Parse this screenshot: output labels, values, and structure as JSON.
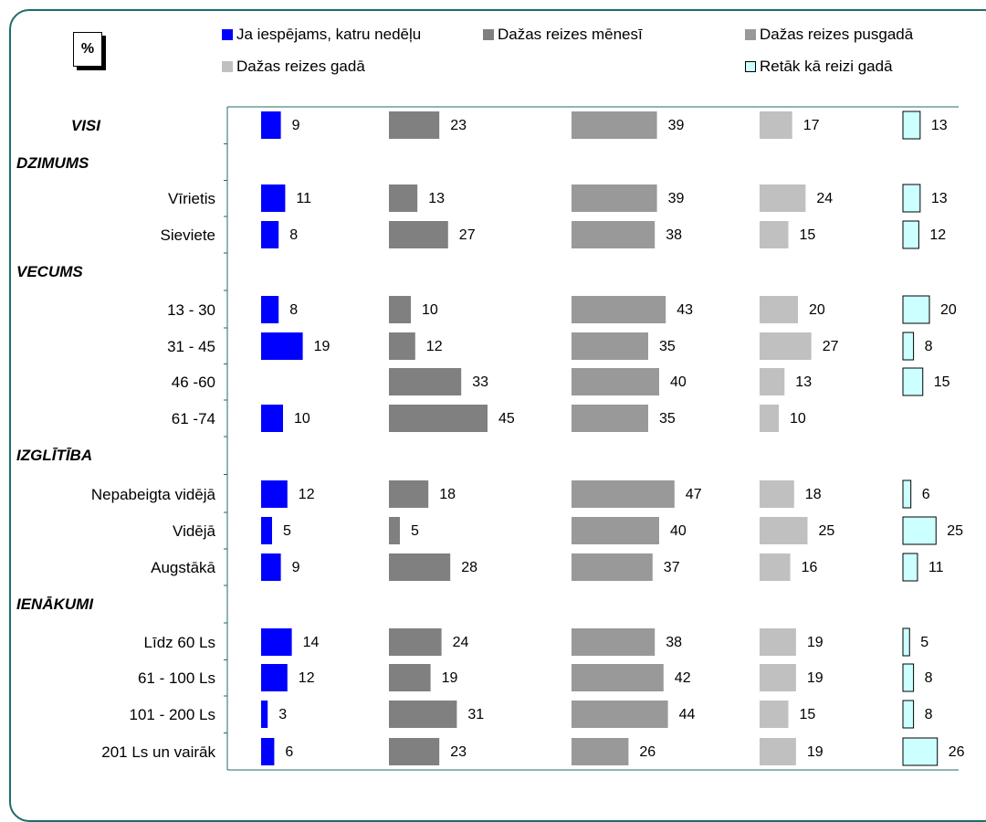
{
  "unit_badge": "%",
  "colors": {
    "frame": "#1f6b6b",
    "axis": "#1f6b6b",
    "series": [
      "#0000ff",
      "#808080",
      "#999999",
      "#c0c0c0",
      "#ccffff"
    ],
    "series_border": [
      "none",
      "none",
      "none",
      "none",
      "#000000"
    ]
  },
  "chart_data": {
    "type": "bar",
    "orientation": "horizontal",
    "layout": "small-multiples",
    "legend_placement": "top",
    "grid": false,
    "series": [
      {
        "name": "Ja iespējams, katru nedēļu",
        "values": [
          9,
          11,
          8,
          8,
          19,
          null,
          10,
          12,
          5,
          9,
          14,
          12,
          3,
          6
        ]
      },
      {
        "name": "Dažas reizes mēnesī",
        "values": [
          23,
          13,
          27,
          10,
          12,
          33,
          45,
          18,
          5,
          28,
          24,
          19,
          31,
          23
        ]
      },
      {
        "name": "Dažas reizes pusgadā",
        "values": [
          39,
          39,
          38,
          43,
          35,
          40,
          35,
          47,
          40,
          37,
          38,
          42,
          44,
          26
        ]
      },
      {
        "name": "Dažas reizes gadā",
        "values": [
          17,
          24,
          15,
          20,
          27,
          13,
          10,
          18,
          25,
          16,
          19,
          19,
          15,
          19
        ]
      },
      {
        "name": "Retāk kā reizi gadā",
        "values": [
          13,
          13,
          12,
          20,
          8,
          15,
          null,
          6,
          25,
          11,
          5,
          8,
          8,
          26
        ]
      }
    ],
    "rows": [
      {
        "type": "group",
        "label": "VISI",
        "index": 0
      },
      {
        "type": "group",
        "label": "DZIMUMS"
      },
      {
        "type": "category",
        "label": "Vīrietis",
        "index": 1
      },
      {
        "type": "category",
        "label": "Sieviete",
        "index": 2
      },
      {
        "type": "group",
        "label": "VECUMS"
      },
      {
        "type": "category",
        "label": "13 - 30",
        "index": 3
      },
      {
        "type": "category",
        "label": "31 - 45",
        "index": 4
      },
      {
        "type": "category",
        "label": "46 -60",
        "index": 5
      },
      {
        "type": "category",
        "label": "61 -74",
        "index": 6
      },
      {
        "type": "group",
        "label": "IZGLĪTĪBA"
      },
      {
        "type": "category",
        "label": "Nepabeigta vidējā",
        "index": 7
      },
      {
        "type": "category",
        "label": "Vidējā",
        "index": 8
      },
      {
        "type": "category",
        "label": "Augstākā",
        "index": 9
      },
      {
        "type": "group",
        "label": "IENĀKUMI"
      },
      {
        "type": "category",
        "label": "Līdz 60 Ls",
        "index": 10
      },
      {
        "type": "category",
        "label": "61 - 100 Ls",
        "index": 11
      },
      {
        "type": "category",
        "label": "101 - 200 Ls",
        "index": 12
      },
      {
        "type": "category",
        "label": "201 Ls un vairāk",
        "index": 13
      }
    ]
  }
}
